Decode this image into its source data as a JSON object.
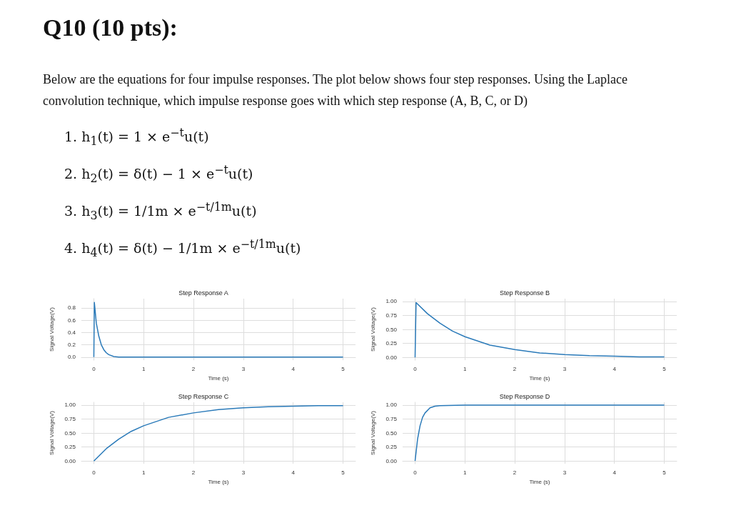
{
  "chart_data": [
    {
      "type": "line",
      "title": "Step Response A",
      "xlabel": "Time (s)",
      "ylabel": "Signal Voltage(V)",
      "color": "#2a7ab9",
      "grid": true,
      "annotations": [
        "Q10 (10 pts):",
        "Below are the equations for four impulse responses. The plot below shows four step responses.  Using the Laplace convolution technique, which impulse response goes with which step response (A, B, C, or D)",
        "1.  h$_{1}$(t) = 1 × e$^{−t}$u(t)",
        "2.  h$_{2}$(t) = δ(t) − 1 × e$^{−t}$u(t)",
        "3.  h$_{3}$(t) = 1/1m × e$^{−t/1m}$u(t)",
        "4.  h$_{4}$(t) = δ(t) − 1/1m × e$^{−t/1m}$u(t)"
      ],
      "x": [
        0,
        0.01,
        0.05,
        0.1,
        0.15,
        0.2,
        0.25,
        0.3,
        0.4,
        0.5,
        1,
        2,
        3,
        4,
        5
      ],
      "values": [
        0,
        0.89,
        0.55,
        0.34,
        0.2,
        0.12,
        0.07,
        0.04,
        0.01,
        0.0,
        0,
        0,
        0,
        0,
        0
      ],
      "xlim": [
        -0.25,
        5.25
      ],
      "xticks": [
        0,
        1,
        2,
        3,
        4,
        5
      ],
      "ylim": [
        -0.05,
        0.95
      ],
      "yticks": [
        {
          "value": 0,
          "label": "0.0"
        },
        0.2,
        0.4,
        0.6,
        0.8
      ]
    },
    {
      "type": "line",
      "title": "Step Response B",
      "xlabel": "Time (s)",
      "ylabel": "Signal Voltage(V)",
      "color": "#2a7ab9",
      "grid": true,
      "x": [
        0,
        0.02,
        0.25,
        0.5,
        0.75,
        1,
        1.5,
        2,
        2.5,
        3,
        3.5,
        4,
        4.5,
        5
      ],
      "values": [
        0,
        0.98,
        0.78,
        0.61,
        0.47,
        0.37,
        0.22,
        0.14,
        0.08,
        0.05,
        0.03,
        0.02,
        0.01,
        0.01
      ],
      "xlim": [
        -0.25,
        5.25
      ],
      "xticks": [
        0,
        1,
        2,
        3,
        4,
        5
      ],
      "ylim": [
        -0.05,
        1.05
      ],
      "yticks": [
        {
          "value": 0,
          "label": "0.00"
        },
        0.25,
        {
          "value": 0.5,
          "label": "0.50"
        },
        0.75,
        {
          "value": 1,
          "label": "1.00"
        }
      ]
    },
    {
      "type": "line",
      "title": "Step Response C",
      "xlabel": "Time (s)",
      "ylabel": "Signal Voltage(V)",
      "color": "#2a7ab9",
      "grid": true,
      "x": [
        0,
        0.25,
        0.5,
        0.75,
        1,
        1.5,
        2,
        2.5,
        3,
        3.5,
        4,
        4.5,
        5
      ],
      "values": [
        0,
        0.22,
        0.39,
        0.53,
        0.63,
        0.78,
        0.86,
        0.92,
        0.95,
        0.97,
        0.98,
        0.99,
        0.99
      ],
      "xlim": [
        -0.25,
        5.25
      ],
      "xticks": [
        0,
        1,
        2,
        3,
        4,
        5
      ],
      "ylim": [
        -0.05,
        1.05
      ],
      "yticks": [
        {
          "value": 0,
          "label": "0.00"
        },
        0.25,
        {
          "value": 0.5,
          "label": "0.50"
        },
        0.75,
        {
          "value": 1,
          "label": "1.00"
        }
      ]
    },
    {
      "type": "line",
      "title": "Step Response D",
      "xlabel": "Time (s)",
      "ylabel": "Signal Voltage(V)",
      "color": "#2a7ab9",
      "grid": true,
      "x": [
        0,
        0.05,
        0.1,
        0.15,
        0.2,
        0.3,
        0.4,
        0.5,
        1,
        2,
        3,
        4,
        5
      ],
      "values": [
        0,
        0.39,
        0.63,
        0.78,
        0.86,
        0.95,
        0.98,
        0.99,
        1,
        1,
        1,
        1,
        1
      ],
      "xlim": [
        -0.25,
        5.25
      ],
      "xticks": [
        0,
        1,
        2,
        3,
        4,
        5
      ],
      "ylim": [
        -0.05,
        1.05
      ],
      "yticks": [
        {
          "value": 0,
          "label": "0.00"
        },
        0.25,
        {
          "value": 0.5,
          "label": "0.50"
        },
        0.75,
        {
          "value": 1,
          "label": "1.00"
        }
      ]
    }
  ]
}
